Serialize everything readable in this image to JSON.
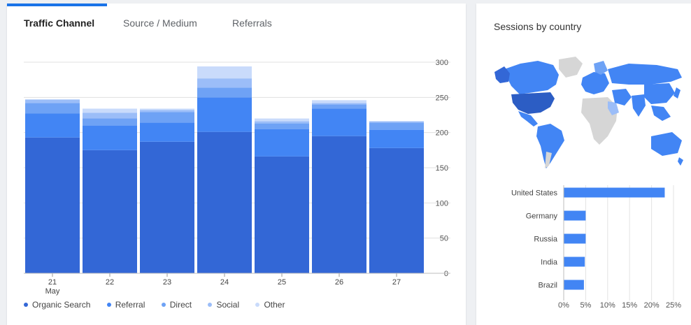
{
  "tabs": [
    {
      "label": "Traffic Channel",
      "active": true
    },
    {
      "label": "Source / Medium",
      "active": false
    },
    {
      "label": "Referrals",
      "active": false
    }
  ],
  "colors": {
    "organic": "#3367d6",
    "referral": "#4285f4",
    "direct": "#6ea2f5",
    "social": "#9bbdf8",
    "other": "#c9dbfb",
    "accent": "#1a73e8"
  },
  "chart_data": [
    {
      "type": "bar",
      "stacked": true,
      "categories": [
        "21",
        "22",
        "23",
        "24",
        "25",
        "26",
        "27"
      ],
      "x_sublabel": "May",
      "series": [
        {
          "name": "Organic Search",
          "values": [
            193,
            175,
            187,
            201,
            166,
            195,
            178
          ]
        },
        {
          "name": "Referral",
          "values": [
            34,
            35,
            27,
            49,
            39,
            39,
            26
          ]
        },
        {
          "name": "Direct",
          "values": [
            15,
            10,
            15,
            14,
            8,
            6,
            10
          ]
        },
        {
          "name": "Social",
          "values": [
            5,
            8,
            3,
            13,
            3,
            2,
            2
          ]
        },
        {
          "name": "Other",
          "values": [
            0,
            6,
            2,
            17,
            4,
            4,
            0
          ]
        }
      ],
      "ylim": [
        0,
        300
      ],
      "yticks": [
        "300",
        "250",
        "200",
        "150",
        "100",
        "50",
        "0"
      ],
      "grid": true,
      "legend": "bottom"
    },
    {
      "type": "bar",
      "orientation": "horizontal",
      "title": "Sessions by country",
      "categories": [
        "United States",
        "Germany",
        "Russia",
        "India",
        "Brazil"
      ],
      "values": [
        23,
        5,
        5,
        4.8,
        4.6
      ],
      "xlim": [
        0,
        25
      ],
      "xticks": [
        "0%",
        "5%",
        "10%",
        "15%",
        "20%",
        "25%"
      ],
      "grid": true
    }
  ],
  "country_card": {
    "title": "Sessions by country"
  }
}
